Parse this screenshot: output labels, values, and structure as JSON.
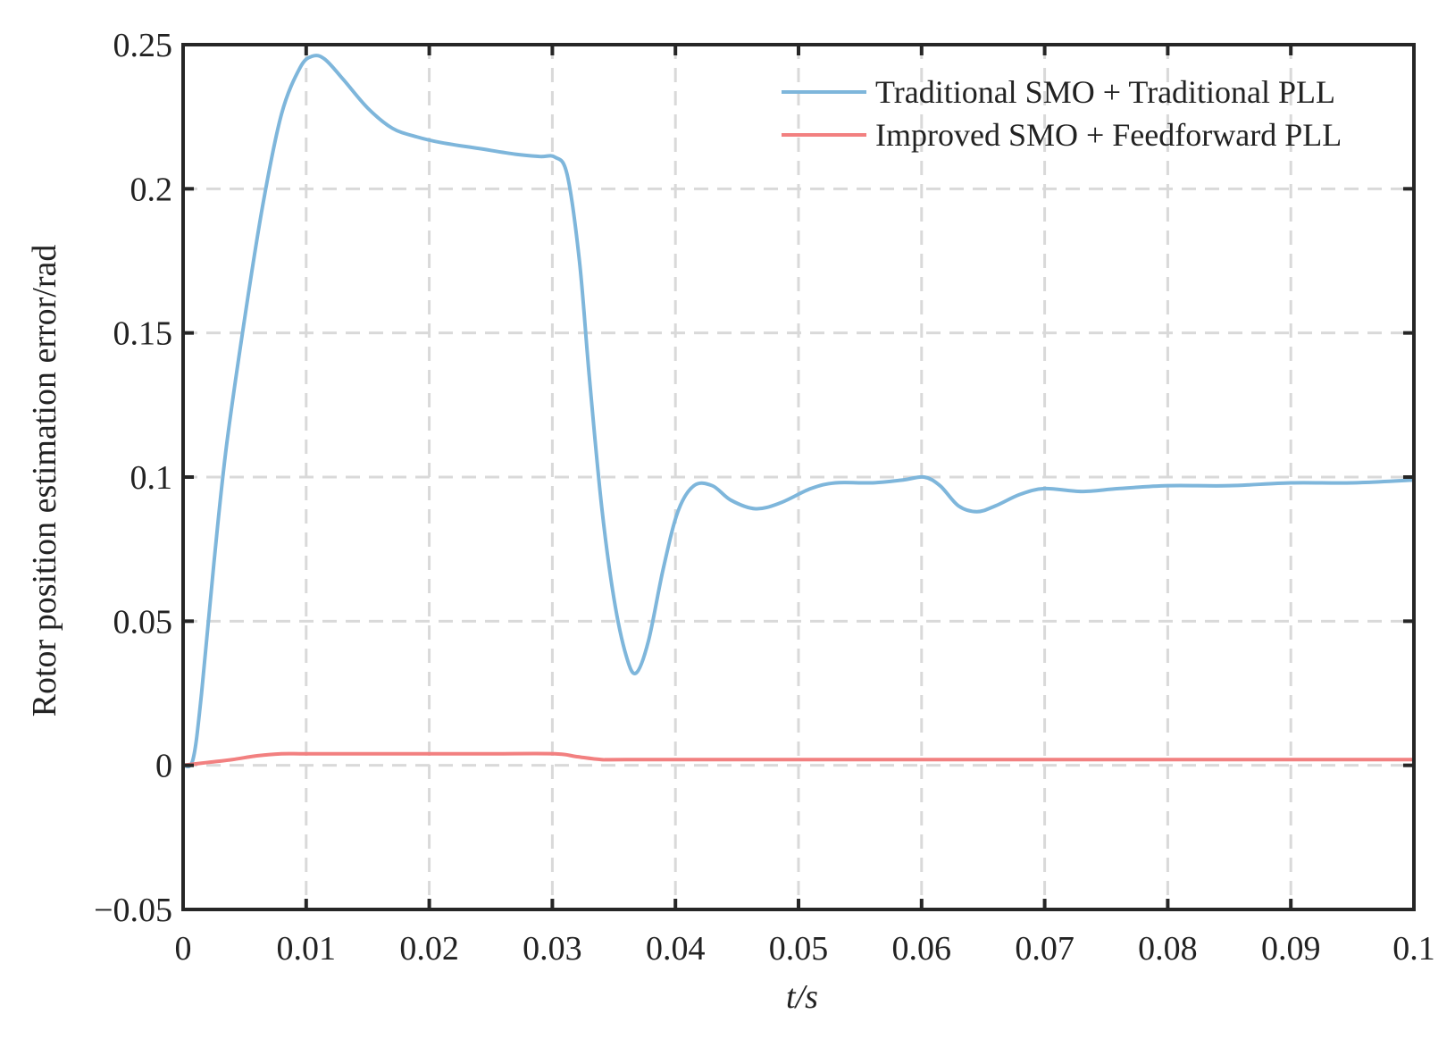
{
  "chart_data": {
    "type": "line",
    "xlabel": "t/s",
    "ylabel": "Rotor position estimation error/rad",
    "xlim": [
      0,
      0.1
    ],
    "ylim": [
      -0.05,
      0.25
    ],
    "grid": true,
    "legend_position": "top-right",
    "x_ticks": [
      0,
      0.01,
      0.02,
      0.03,
      0.04,
      0.05,
      0.06,
      0.07,
      0.08,
      0.09,
      0.1
    ],
    "x_tick_labels": [
      "0",
      "0.01",
      "0.02",
      "0.03",
      "0.04",
      "0.05",
      "0.06",
      "0.07",
      "0.08",
      "0.09",
      "0.1"
    ],
    "y_ticks": [
      -0.05,
      0,
      0.05,
      0.1,
      0.15,
      0.2,
      0.25
    ],
    "y_tick_labels": [
      "−0.05",
      "0",
      "0.05",
      "0.1",
      "0.15",
      "0.2",
      "0.25"
    ],
    "series": [
      {
        "name": "Traditional SMO + Traditional PLL",
        "color": "#7eb6db",
        "points": [
          [
            0,
            0
          ],
          [
            0.0008,
            0.002
          ],
          [
            0.0015,
            0.025
          ],
          [
            0.0025,
            0.07
          ],
          [
            0.0035,
            0.11
          ],
          [
            0.005,
            0.155
          ],
          [
            0.0065,
            0.195
          ],
          [
            0.008,
            0.226
          ],
          [
            0.0095,
            0.242
          ],
          [
            0.0105,
            0.246
          ],
          [
            0.0115,
            0.245
          ],
          [
            0.013,
            0.238
          ],
          [
            0.015,
            0.228
          ],
          [
            0.017,
            0.221
          ],
          [
            0.019,
            0.218
          ],
          [
            0.021,
            0.216
          ],
          [
            0.024,
            0.214
          ],
          [
            0.027,
            0.212
          ],
          [
            0.029,
            0.2112
          ],
          [
            0.0302,
            0.211
          ],
          [
            0.0312,
            0.205
          ],
          [
            0.0322,
            0.175
          ],
          [
            0.033,
            0.135
          ],
          [
            0.034,
            0.09
          ],
          [
            0.035,
            0.058
          ],
          [
            0.036,
            0.038
          ],
          [
            0.0368,
            0.032
          ],
          [
            0.0378,
            0.043
          ],
          [
            0.039,
            0.068
          ],
          [
            0.0402,
            0.088
          ],
          [
            0.0415,
            0.097
          ],
          [
            0.043,
            0.097
          ],
          [
            0.0445,
            0.092
          ],
          [
            0.0465,
            0.089
          ],
          [
            0.0485,
            0.091
          ],
          [
            0.051,
            0.096
          ],
          [
            0.053,
            0.098
          ],
          [
            0.056,
            0.098
          ],
          [
            0.0585,
            0.099
          ],
          [
            0.0602,
            0.1
          ],
          [
            0.0615,
            0.097
          ],
          [
            0.063,
            0.09
          ],
          [
            0.0645,
            0.088
          ],
          [
            0.066,
            0.09
          ],
          [
            0.068,
            0.094
          ],
          [
            0.07,
            0.096
          ],
          [
            0.073,
            0.095
          ],
          [
            0.076,
            0.096
          ],
          [
            0.08,
            0.097
          ],
          [
            0.085,
            0.097
          ],
          [
            0.09,
            0.098
          ],
          [
            0.095,
            0.098
          ],
          [
            0.1,
            0.099
          ]
        ]
      },
      {
        "name": "Improved SMO + Feedforward PLL",
        "color": "#f28080",
        "points": [
          [
            0,
            0
          ],
          [
            0.002,
            0.001
          ],
          [
            0.004,
            0.002
          ],
          [
            0.006,
            0.0033
          ],
          [
            0.008,
            0.004
          ],
          [
            0.01,
            0.004
          ],
          [
            0.015,
            0.004
          ],
          [
            0.02,
            0.004
          ],
          [
            0.025,
            0.004
          ],
          [
            0.0302,
            0.004
          ],
          [
            0.032,
            0.003
          ],
          [
            0.034,
            0.002
          ],
          [
            0.036,
            0.002
          ],
          [
            0.05,
            0.002
          ],
          [
            0.07,
            0.002
          ],
          [
            0.09,
            0.002
          ],
          [
            0.1,
            0.002
          ]
        ]
      }
    ]
  }
}
